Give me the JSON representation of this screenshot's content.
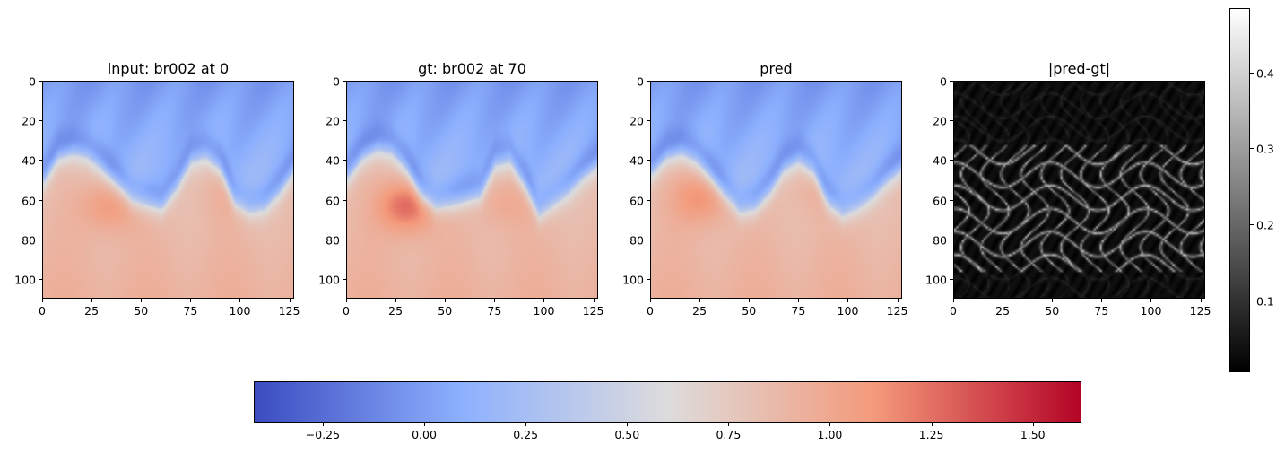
{
  "chart_data": {
    "type": "heatmap",
    "panels": [
      {
        "title": "input: br002 at 0",
        "colormap": "coolwarm",
        "interface_row": [
          50,
          38,
          36,
          38,
          44,
          52,
          60,
          62,
          64,
          54,
          40,
          38,
          44,
          62,
          66,
          64,
          56,
          45
        ],
        "lobes": [
          {
            "x": 33,
            "y": 62,
            "strength": 0.25
          },
          {
            "x": 94,
            "y": 55,
            "strength": 0.1
          }
        ],
        "xlim": [
          0,
          127
        ],
        "ylim": [
          110,
          0
        ],
        "xticks": [
          0,
          25,
          50,
          75,
          100,
          125
        ],
        "yticks": [
          0,
          20,
          40,
          60,
          80,
          100
        ]
      },
      {
        "title": "gt: br002 at 70",
        "colormap": "coolwarm",
        "interface_row": [
          48,
          38,
          34,
          36,
          44,
          58,
          64,
          62,
          60,
          58,
          42,
          40,
          52,
          68,
          62,
          56,
          48,
          42
        ],
        "lobes": [
          {
            "x": 30,
            "y": 62,
            "strength": 0.45
          },
          {
            "x": 80,
            "y": 60,
            "strength": 0.15
          }
        ],
        "xlim": [
          0,
          127
        ],
        "ylim": [
          110,
          0
        ],
        "xticks": [
          0,
          25,
          50,
          75,
          100,
          125
        ],
        "yticks": [
          0,
          20,
          40,
          60,
          80,
          100
        ]
      },
      {
        "title": "pred",
        "colormap": "coolwarm",
        "interface_row": [
          46,
          38,
          36,
          40,
          48,
          58,
          66,
          64,
          56,
          44,
          40,
          46,
          62,
          68,
          64,
          58,
          50,
          44
        ],
        "lobes": [
          {
            "x": 25,
            "y": 58,
            "strength": 0.3
          },
          {
            "x": 85,
            "y": 52,
            "strength": 0.12
          }
        ],
        "xlim": [
          0,
          127
        ],
        "ylim": [
          110,
          0
        ],
        "xticks": [
          0,
          25,
          50,
          75,
          100,
          125
        ],
        "yticks": [
          0,
          20,
          40,
          60,
          80,
          100
        ]
      },
      {
        "title": "|pred-gt|",
        "colormap": "gray",
        "xlim": [
          0,
          127
        ],
        "ylim": [
          110,
          0
        ],
        "xticks": [
          0,
          25,
          50,
          75,
          100,
          125
        ],
        "yticks": [
          0,
          20,
          40,
          60,
          80,
          100
        ]
      }
    ],
    "colorbar_main": {
      "colormap": "coolwarm",
      "orientation": "horizontal",
      "vmin": -0.42,
      "vmax": 1.62,
      "ticks": [
        -0.25,
        0.0,
        0.25,
        0.5,
        0.75,
        1.0,
        1.25,
        1.5
      ],
      "tick_labels": [
        "−0.25",
        "0.00",
        "0.25",
        "0.50",
        "0.75",
        "1.00",
        "1.25",
        "1.50"
      ]
    },
    "colorbar_error": {
      "colormap": "gray",
      "orientation": "vertical",
      "vmin": 0.005,
      "vmax": 0.485,
      "ticks": [
        0.1,
        0.2,
        0.3,
        0.4
      ],
      "tick_labels": [
        "0.1",
        "0.2",
        "0.3",
        "0.4"
      ]
    }
  }
}
